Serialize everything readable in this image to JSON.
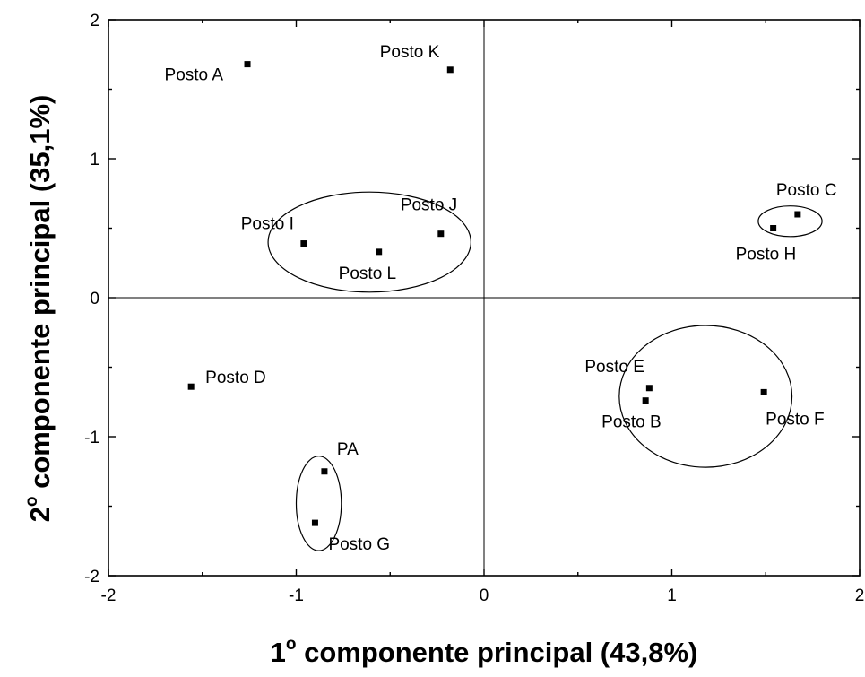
{
  "chart_data": {
    "type": "scatter",
    "xlabel_prefix": "1",
    "xlabel_sup": "o",
    "xlabel_rest": " componente principal (43,8%)",
    "ylabel_prefix": "2",
    "ylabel_sup": "o",
    "ylabel_rest": " componente principal (35,1%)",
    "xlim": [
      -2,
      2
    ],
    "ylim": [
      -2,
      2
    ],
    "xticks": [
      "-2",
      "-1",
      "0",
      "1",
      "2"
    ],
    "yticks": [
      "-2",
      "-1",
      "0",
      "1",
      "2"
    ],
    "points": [
      {
        "label": "Posto A",
        "x": -1.26,
        "y": 1.68
      },
      {
        "label": "Posto K",
        "x": -0.18,
        "y": 1.64
      },
      {
        "label": "Posto C",
        "x": 1.67,
        "y": 0.6
      },
      {
        "label": "Posto H",
        "x": 1.54,
        "y": 0.5
      },
      {
        "label": "Posto I",
        "x": -0.96,
        "y": 0.39
      },
      {
        "label": "Posto L",
        "x": -0.56,
        "y": 0.33
      },
      {
        "label": "Posto J",
        "x": -0.23,
        "y": 0.46
      },
      {
        "label": "Posto D",
        "x": -1.56,
        "y": -0.64
      },
      {
        "label": "Posto E",
        "x": 0.88,
        "y": -0.65
      },
      {
        "label": "Posto B",
        "x": 0.86,
        "y": -0.74
      },
      {
        "label": "Posto F",
        "x": 1.49,
        "y": -0.68
      },
      {
        "label": "PA",
        "x": -0.85,
        "y": -1.25
      },
      {
        "label": "Posto G",
        "x": -0.9,
        "y": -1.62
      }
    ],
    "groups": [
      {
        "members": [
          "Posto I",
          "Posto L",
          "Posto J"
        ],
        "cx": -0.61,
        "cy": 0.4,
        "rx": 0.54,
        "ry": 0.36
      },
      {
        "members": [
          "Posto C",
          "Posto H"
        ],
        "cx": 1.63,
        "cy": 0.55,
        "rx": 0.17,
        "ry": 0.11
      },
      {
        "members": [
          "Posto E",
          "Posto B",
          "Posto F"
        ],
        "cx": 1.18,
        "cy": -0.71,
        "rx": 0.46,
        "ry": 0.51
      },
      {
        "members": [
          "PA",
          "Posto G"
        ],
        "cx": -0.88,
        "cy": -1.48,
        "rx": 0.12,
        "ry": 0.34
      }
    ],
    "grid": false
  }
}
